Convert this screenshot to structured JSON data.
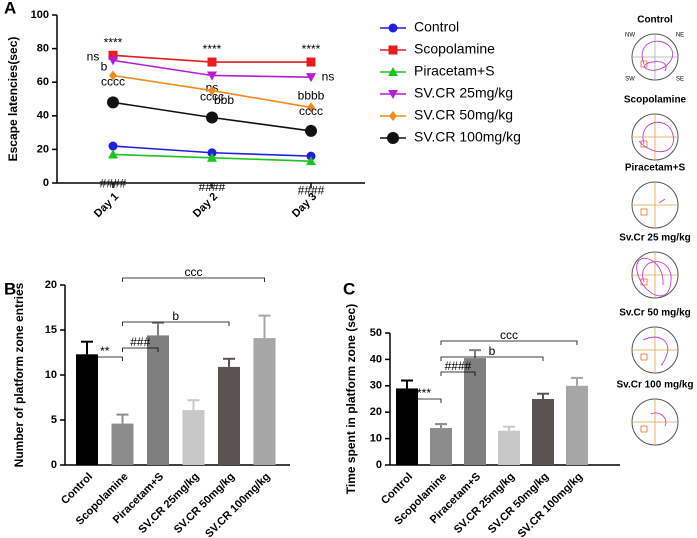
{
  "chart_data": [
    {
      "type": "line",
      "panel": "A",
      "y_label": "Escape latencies(sec)",
      "categories": [
        "Day 1",
        "Day 2",
        "Day 3"
      ],
      "ylim": [
        0,
        100
      ],
      "yticks": [
        0,
        20,
        40,
        60,
        80,
        100
      ],
      "series": [
        {
          "name": "Control",
          "color": "#1f1fdd",
          "marker": "circle",
          "values": [
            22,
            18,
            16
          ]
        },
        {
          "name": "Scopolamine",
          "color": "#e81c1c",
          "marker": "square",
          "values": [
            76,
            72,
            72
          ],
          "annotations": [
            "****",
            "****",
            "****"
          ]
        },
        {
          "name": "Piracetam+S",
          "color": "#1ec41e",
          "marker": "triangle",
          "values": [
            17,
            15,
            13
          ],
          "annotations": [
            "####",
            "####",
            "####"
          ]
        },
        {
          "name": "SV.CR 25mg/kg",
          "color": "#b51cd8",
          "marker": "triangle-down",
          "values": [
            73,
            64,
            63
          ],
          "annotations": [
            "ns",
            "ns",
            "ns"
          ]
        },
        {
          "name": "SV.CR 50mg/kg",
          "color": "#f28a1c",
          "marker": "diamond",
          "values": [
            64,
            55,
            45
          ],
          "annotations": [
            "b",
            "bbb",
            "bbbb"
          ]
        },
        {
          "name": "SV.CR 100mg/kg",
          "color": "#111111",
          "marker": "big-circle",
          "values": [
            48,
            39,
            31
          ],
          "annotations": [
            "cccc",
            "cccc",
            "cccc"
          ]
        }
      ]
    },
    {
      "type": "bar",
      "panel": "B",
      "y_label": "Number of platform zone entries",
      "categories": [
        "Control",
        "Scopolamine",
        "Piracetam+S",
        "SV.CR 25mg/kg",
        "SV.CR 50mg/kg",
        "SV.CR 100mg/kg"
      ],
      "values": [
        12.3,
        4.6,
        14.4,
        6.1,
        10.9,
        14.1
      ],
      "errors": [
        1.4,
        1.0,
        1.4,
        1.1,
        0.9,
        2.5
      ],
      "colors": [
        "#000000",
        "#8c8c8c",
        "#7f7f7f",
        "#c8c8c8",
        "#5b5252",
        "#a6a6a6"
      ],
      "ylim": [
        0,
        20
      ],
      "yticks": [
        0,
        5,
        10,
        15,
        20
      ],
      "brackets": [
        {
          "label": "**",
          "span": [
            "Control",
            "Scopolamine"
          ]
        },
        {
          "label": "###",
          "span": [
            "Scopolamine",
            "Piracetam+S"
          ]
        },
        {
          "label": "b",
          "span": [
            "Scopolamine",
            "SV.CR 50mg/kg"
          ]
        },
        {
          "label": "ccc",
          "span": [
            "Scopolamine",
            "SV.CR 100mg/kg"
          ]
        }
      ]
    },
    {
      "type": "bar",
      "panel": "C",
      "y_label": "Time spent in platform zone (sec)",
      "categories": [
        "Control",
        "Scopolamine",
        "Piracetam+S",
        "SV.CR 25mg/kg",
        "SV.CR 50mg/kg",
        "SV.CR 100mg/kg"
      ],
      "values": [
        29,
        14,
        40.5,
        13,
        25,
        30
      ],
      "errors": [
        3,
        1.5,
        3,
        1.5,
        2,
        3
      ],
      "colors": [
        "#000000",
        "#8c8c8c",
        "#7f7f7f",
        "#c8c8c8",
        "#5b5252",
        "#a6a6a6"
      ],
      "ylim": [
        0,
        50
      ],
      "yticks": [
        0,
        10,
        20,
        30,
        40,
        50
      ],
      "brackets": [
        {
          "label": "***",
          "span": [
            "Control",
            "Scopolamine"
          ]
        },
        {
          "label": "####",
          "span": [
            "Scopolamine",
            "Piracetam+S"
          ]
        },
        {
          "label": "b",
          "span": [
            "Scopolamine",
            "SV.CR 50mg/kg"
          ]
        },
        {
          "label": "ccc",
          "span": [
            "Scopolamine",
            "SV.CR 100mg/kg"
          ]
        }
      ]
    }
  ],
  "maze_panels": {
    "labels": [
      "Control",
      "Scopolamine",
      "Piracetam+S",
      "Sv.Cr 25 mg/kg",
      "Sv.Cr 50 mg/kg",
      "Sv.Cr 100 mg/kg"
    ],
    "quadrants": [
      "NW",
      "NE",
      "SW",
      "SE"
    ]
  }
}
